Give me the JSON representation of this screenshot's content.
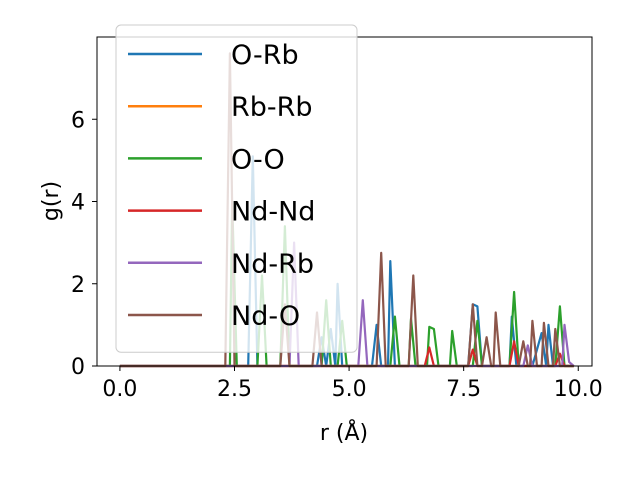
{
  "chart_data": {
    "type": "line",
    "xlabel": "r (Å)",
    "ylabel": "g(r)",
    "xlim": [
      -0.5,
      10.3
    ],
    "ylim": [
      0,
      8
    ],
    "xticks": [
      0.0,
      2.5,
      5.0,
      7.5,
      10.0
    ],
    "xtick_labels": [
      "0.0",
      "2.5",
      "5.0",
      "7.5",
      "10.0"
    ],
    "yticks": [
      0,
      2,
      4,
      6
    ],
    "ytick_labels": [
      "0",
      "2",
      "4",
      "6"
    ],
    "legend_position": "upper-left",
    "grid": false,
    "series": [
      {
        "name": "O-Rb",
        "color": "#1f77b4",
        "points": [
          [
            0,
            0
          ],
          [
            2.8,
            0
          ],
          [
            2.9,
            5.1
          ],
          [
            3.0,
            0
          ],
          [
            4.3,
            0
          ],
          [
            4.4,
            0.7
          ],
          [
            4.5,
            0
          ],
          [
            4.6,
            0.9
          ],
          [
            4.7,
            0
          ],
          [
            4.75,
            2.0
          ],
          [
            4.85,
            0
          ],
          [
            5.5,
            0
          ],
          [
            5.6,
            1.0
          ],
          [
            5.7,
            0
          ],
          [
            5.85,
            0
          ],
          [
            5.9,
            2.55
          ],
          [
            6.0,
            0
          ],
          [
            7.6,
            0
          ],
          [
            7.7,
            1.5
          ],
          [
            7.8,
            1.45
          ],
          [
            7.9,
            0
          ],
          [
            8.5,
            0
          ],
          [
            8.55,
            1.2
          ],
          [
            8.65,
            0
          ],
          [
            9.0,
            0
          ],
          [
            9.2,
            0.8
          ],
          [
            9.3,
            0
          ],
          [
            9.35,
            1.0
          ],
          [
            9.45,
            0
          ],
          [
            9.9,
            0
          ]
        ]
      },
      {
        "name": "Rb-Rb",
        "color": "#ff7f0e",
        "points": [
          [
            0,
            0
          ],
          [
            9.9,
            0
          ]
        ]
      },
      {
        "name": "O-O",
        "color": "#2ca02c",
        "points": [
          [
            0,
            0
          ],
          [
            2.4,
            0
          ],
          [
            2.45,
            4.0
          ],
          [
            2.55,
            0
          ],
          [
            3.0,
            0
          ],
          [
            3.1,
            2.2
          ],
          [
            3.2,
            0
          ],
          [
            3.5,
            0
          ],
          [
            3.6,
            3.4
          ],
          [
            3.7,
            0
          ],
          [
            4.4,
            0
          ],
          [
            4.5,
            1.6
          ],
          [
            4.6,
            0
          ],
          [
            4.75,
            0
          ],
          [
            4.85,
            1.1
          ],
          [
            4.95,
            0
          ],
          [
            5.9,
            0
          ],
          [
            6.0,
            1.2
          ],
          [
            6.1,
            0
          ],
          [
            6.3,
            0
          ],
          [
            6.35,
            1.15
          ],
          [
            6.45,
            0
          ],
          [
            6.7,
            0
          ],
          [
            6.75,
            0.95
          ],
          [
            6.85,
            0.9
          ],
          [
            6.95,
            0
          ],
          [
            7.2,
            0
          ],
          [
            7.25,
            0.85
          ],
          [
            7.35,
            0
          ],
          [
            7.7,
            0
          ],
          [
            7.8,
            1.1
          ],
          [
            7.9,
            0
          ],
          [
            8.5,
            0
          ],
          [
            8.6,
            1.8
          ],
          [
            8.7,
            0
          ],
          [
            9.5,
            0
          ],
          [
            9.6,
            1.45
          ],
          [
            9.7,
            0
          ],
          [
            9.9,
            0
          ]
        ]
      },
      {
        "name": "Nd-Nd",
        "color": "#d62728",
        "points": [
          [
            0,
            0
          ],
          [
            6.65,
            0
          ],
          [
            6.75,
            0.45
          ],
          [
            6.85,
            0
          ],
          [
            7.6,
            0
          ],
          [
            7.7,
            0.4
          ],
          [
            7.8,
            0
          ],
          [
            8.5,
            0
          ],
          [
            8.6,
            0.6
          ],
          [
            8.7,
            0
          ],
          [
            9.5,
            0
          ],
          [
            9.6,
            0.3
          ],
          [
            9.7,
            0
          ],
          [
            9.9,
            0
          ]
        ]
      },
      {
        "name": "Nd-Rb",
        "color": "#9467bd",
        "points": [
          [
            0,
            0
          ],
          [
            3.7,
            0
          ],
          [
            3.8,
            3.0
          ],
          [
            3.9,
            0
          ],
          [
            5.2,
            0
          ],
          [
            5.3,
            1.6
          ],
          [
            5.4,
            0
          ],
          [
            8.8,
            0
          ],
          [
            8.9,
            0.5
          ],
          [
            9.0,
            0
          ],
          [
            9.65,
            0
          ],
          [
            9.7,
            1.0
          ],
          [
            9.8,
            0.1
          ],
          [
            9.9,
            0
          ]
        ]
      },
      {
        "name": "Nd-O",
        "color": "#8c564b",
        "points": [
          [
            0,
            0
          ],
          [
            2.3,
            0
          ],
          [
            2.4,
            7.6
          ],
          [
            2.5,
            0
          ],
          [
            3.5,
            0
          ],
          [
            3.6,
            1.5
          ],
          [
            3.7,
            0
          ],
          [
            4.2,
            0
          ],
          [
            4.3,
            1.3
          ],
          [
            4.4,
            0
          ],
          [
            5.6,
            0
          ],
          [
            5.7,
            2.75
          ],
          [
            5.8,
            0
          ],
          [
            6.3,
            0
          ],
          [
            6.4,
            2.2
          ],
          [
            6.5,
            0
          ],
          [
            7.6,
            0
          ],
          [
            7.7,
            1.5
          ],
          [
            7.8,
            0
          ],
          [
            7.9,
            0
          ],
          [
            8.0,
            0.7
          ],
          [
            8.1,
            0
          ],
          [
            8.15,
            0
          ],
          [
            8.2,
            1.3
          ],
          [
            8.3,
            0
          ],
          [
            8.7,
            0
          ],
          [
            8.8,
            0.6
          ],
          [
            8.9,
            0
          ],
          [
            8.95,
            0
          ],
          [
            9.0,
            1.1
          ],
          [
            9.1,
            0
          ],
          [
            9.2,
            0
          ],
          [
            9.25,
            1.05
          ],
          [
            9.35,
            0
          ],
          [
            9.45,
            0
          ],
          [
            9.5,
            0.9
          ],
          [
            9.6,
            0
          ],
          [
            9.9,
            0
          ]
        ]
      }
    ]
  }
}
